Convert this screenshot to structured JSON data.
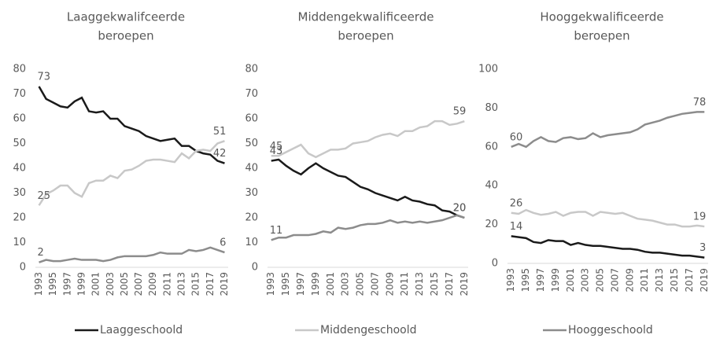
{
  "chart_data": [
    {
      "type": "line",
      "title": [
        "Laaggekwalifceerde",
        "beroepen"
      ],
      "categories": [
        "1993",
        null,
        "1995",
        null,
        "1997",
        null,
        "1999",
        null,
        "2001",
        null,
        "2003",
        null,
        "2005",
        null,
        "2007",
        null,
        "2009",
        null,
        "2011",
        null,
        "2013",
        null,
        "2015",
        null,
        "2017",
        null,
        "2019"
      ],
      "ylim": [
        0,
        80
      ],
      "yticks": [
        0,
        10,
        20,
        30,
        40,
        50,
        60,
        70,
        80
      ],
      "series": [
        {
          "color": "#1a1a1a",
          "values": [
            73,
            68,
            66.5,
            65,
            64.5,
            67,
            68.5,
            63,
            62.5,
            63,
            60,
            60,
            57,
            56,
            55,
            53,
            52,
            51,
            51.5,
            52,
            49,
            49,
            47,
            46,
            45.5,
            43,
            42
          ]
        },
        {
          "color": "#c8c8c8",
          "values": [
            25,
            29.5,
            31,
            33,
            33,
            30,
            28.5,
            34,
            35,
            35,
            37,
            36,
            39,
            39.5,
            41,
            43,
            43.5,
            43.5,
            43,
            42.5,
            46,
            44,
            47,
            47.5,
            47,
            50,
            51
          ]
        },
        {
          "color": "#8c8c8c",
          "values": [
            2,
            3,
            2.5,
            2.5,
            3,
            3.5,
            3,
            3,
            3,
            2.5,
            3,
            4,
            4.5,
            4.5,
            4.5,
            4.5,
            5,
            6,
            5.5,
            5.5,
            5.5,
            7,
            6.5,
            7,
            8,
            7,
            6
          ]
        }
      ]
    },
    {
      "type": "line",
      "title": [
        "Middengekwalificeerde",
        "beroepen"
      ],
      "categories": [
        "1993",
        null,
        "1995",
        null,
        "1997",
        null,
        "1999",
        null,
        "2001",
        null,
        "2003",
        null,
        "2005",
        null,
        "2007",
        null,
        "2009",
        null,
        "2011",
        null,
        "2013",
        null,
        "2015",
        null,
        "2017",
        null,
        "2019"
      ],
      "ylim": [
        0,
        80
      ],
      "yticks": [
        0,
        10,
        20,
        30,
        40,
        50,
        60,
        70,
        80
      ],
      "series": [
        {
          "color": "#1a1a1a",
          "values": [
            43,
            43.5,
            41,
            39,
            37.5,
            40,
            42,
            40,
            38.5,
            37,
            36.5,
            34.5,
            32.5,
            31.5,
            30,
            29,
            28,
            27,
            28.5,
            27,
            26.5,
            25.5,
            25,
            23,
            22.5,
            21,
            20
          ]
        },
        {
          "color": "#c8c8c8",
          "values": [
            45,
            45,
            46.5,
            48,
            49.5,
            46,
            44.5,
            46,
            47.5,
            47.5,
            48,
            50,
            50.5,
            51,
            52.5,
            53.5,
            54,
            53,
            55,
            55,
            56.5,
            57,
            59,
            59,
            57.5,
            58,
            59
          ]
        },
        {
          "color": "#8c8c8c",
          "values": [
            11,
            12,
            12,
            13,
            13,
            13,
            13.5,
            14.5,
            14,
            16,
            15.5,
            16,
            17,
            17.5,
            17.5,
            18,
            19,
            18,
            18.5,
            18,
            18.5,
            18,
            18.5,
            19,
            20,
            21,
            20
          ]
        }
      ]
    },
    {
      "type": "line",
      "title": [
        "Hooggekwalificeerde",
        "beroepen"
      ],
      "categories": [
        "1993",
        null,
        "1995",
        null,
        "1997",
        null,
        "1999",
        null,
        "2001",
        null,
        "2003",
        null,
        "2005",
        null,
        "2007",
        null,
        "2009",
        null,
        "2011",
        null,
        "2013",
        null,
        "2015",
        null,
        "2017",
        null,
        "2019"
      ],
      "ylim": [
        0,
        100
      ],
      "yticks": [
        0,
        20,
        40,
        60,
        80,
        100
      ],
      "series": [
        {
          "color": "#1a1a1a",
          "values": [
            14,
            13.5,
            13,
            11,
            10.5,
            12,
            11.5,
            11.5,
            9.5,
            10.5,
            9.5,
            9,
            9,
            8.5,
            8,
            7.5,
            7.5,
            7,
            6,
            5.5,
            5.5,
            5,
            4.5,
            4,
            4,
            3.5,
            3
          ]
        },
        {
          "color": "#c8c8c8",
          "values": [
            26,
            25.5,
            27.5,
            26,
            25,
            25.5,
            26.5,
            24.5,
            26,
            26.5,
            26.5,
            24.5,
            26.5,
            26,
            25.5,
            26,
            24.5,
            23,
            22.5,
            22,
            21,
            20,
            20,
            19,
            19,
            19.5,
            19
          ]
        },
        {
          "color": "#8c8c8c",
          "values": [
            60,
            61.5,
            60,
            63,
            65,
            63,
            62.5,
            64.5,
            65,
            64,
            64.5,
            67,
            65,
            66,
            66.5,
            67,
            67.5,
            69,
            71.5,
            72.5,
            73.5,
            75,
            76,
            77,
            77.5,
            78,
            78
          ]
        }
      ]
    }
  ],
  "legend": [
    {
      "name": "Laaggeschoold",
      "color": "#1a1a1a"
    },
    {
      "name": "Middengeschoold",
      "color": "#c8c8c8"
    },
    {
      "name": "Hooggeschoold",
      "color": "#8c8c8c"
    }
  ]
}
